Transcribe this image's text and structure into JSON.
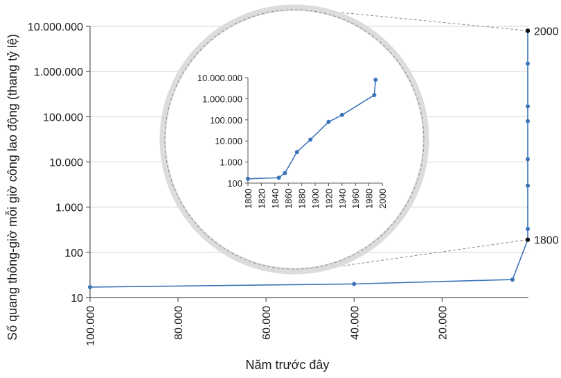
{
  "chart_data": [
    {
      "type": "line",
      "xlabel": "Năm trước đây",
      "ylabel": "Số quang thông-giờ mỗi giờ công lao động (thang tỷ lệ)",
      "x_reversed": true,
      "y_scale": "log",
      "xlim": [
        100000,
        0
      ],
      "ylim": [
        10,
        10000000
      ],
      "x_ticks": [
        "100.000",
        "80.000",
        "60.000",
        "40.000",
        "20.000"
      ],
      "x_tick_values": [
        100000,
        80000,
        60000,
        40000,
        20000
      ],
      "y_ticks": [
        "10",
        "100",
        "1.000",
        "10.000",
        "100.000",
        "1.000.000",
        "10.000.000"
      ],
      "y_tick_values": [
        10,
        100,
        1000,
        10000,
        100000,
        1000000,
        10000000
      ],
      "grid": true,
      "series": [
        {
          "color": "#3b73b9",
          "points": [
            {
              "x": 100000,
              "y": 17
            },
            {
              "x": 40000,
              "y": 20
            },
            {
              "x": 4000,
              "y": 25
            },
            {
              "x": 200,
              "y": 190
            },
            {
              "x": 150,
              "y": 330
            },
            {
              "x": 127,
              "y": 3000
            },
            {
              "x": 110,
              "y": 11500
            },
            {
              "x": 80,
              "y": 80000
            },
            {
              "x": 60,
              "y": 170000
            },
            {
              "x": 15,
              "y": 1500000
            },
            {
              "x": 12,
              "y": 8000000
            }
          ]
        }
      ],
      "endpoint_labels": [
        {
          "text": "2000",
          "x": 0,
          "y": 8000000
        },
        {
          "text": "1800",
          "x": 0,
          "y": 190
        }
      ]
    },
    {
      "type": "line",
      "title": "",
      "xlim": [
        1800,
        2000
      ],
      "ylim": [
        100,
        10000000
      ],
      "y_scale": "log",
      "x_ticks": [
        "1800",
        "1820",
        "1840",
        "1860",
        "1880",
        "1900",
        "1920",
        "1940",
        "1960",
        "1980",
        "2000"
      ],
      "x_tick_values": [
        1800,
        1820,
        1840,
        1860,
        1880,
        1900,
        1920,
        1940,
        1960,
        1980,
        2000
      ],
      "y_ticks": [
        "100",
        "1.000",
        "10.000",
        "100.000",
        "1.000.000",
        "10.000.000"
      ],
      "y_tick_values": [
        100,
        1000,
        10000,
        100000,
        1000000,
        10000000
      ],
      "grid": false,
      "series": [
        {
          "color": "#3b73b9",
          "points": [
            {
              "x": 1800,
              "y": 160
            },
            {
              "x": 1846,
              "y": 180
            },
            {
              "x": 1855,
              "y": 300
            },
            {
              "x": 1873,
              "y": 3000
            },
            {
              "x": 1893,
              "y": 11500
            },
            {
              "x": 1920,
              "y": 80000
            },
            {
              "x": 1940,
              "y": 170000
            },
            {
              "x": 1988,
              "y": 1500000
            },
            {
              "x": 1990,
              "y": 8000000
            }
          ]
        }
      ]
    }
  ]
}
